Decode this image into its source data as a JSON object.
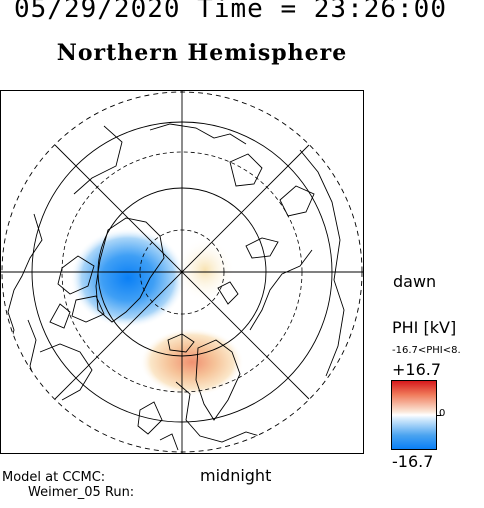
{
  "header": {
    "date_time": "05/29/2020 Time = 23:26:00",
    "title": "Northern Hemisphere"
  },
  "map": {
    "local_time_labels": {
      "dawn": "dawn",
      "midnight": "midnight"
    },
    "colors": {
      "positive": "#d7191c",
      "negative": "#0a7ff5",
      "grid": "#000000",
      "coast": "#000000"
    },
    "potential_cells": [
      {
        "name": "dusk-cell",
        "sign": "negative"
      },
      {
        "name": "dawn-cell",
        "sign": "positive"
      }
    ]
  },
  "legend": {
    "quantity": "PHI [kV]",
    "range_text": "-16.7<PHI<8.",
    "max_label": "+16.7",
    "zero_label": "0",
    "min_label": "-16.7"
  },
  "footer": {
    "model_line": "Model at CCMC:",
    "run_line": "Weimer_05 Run:"
  }
}
